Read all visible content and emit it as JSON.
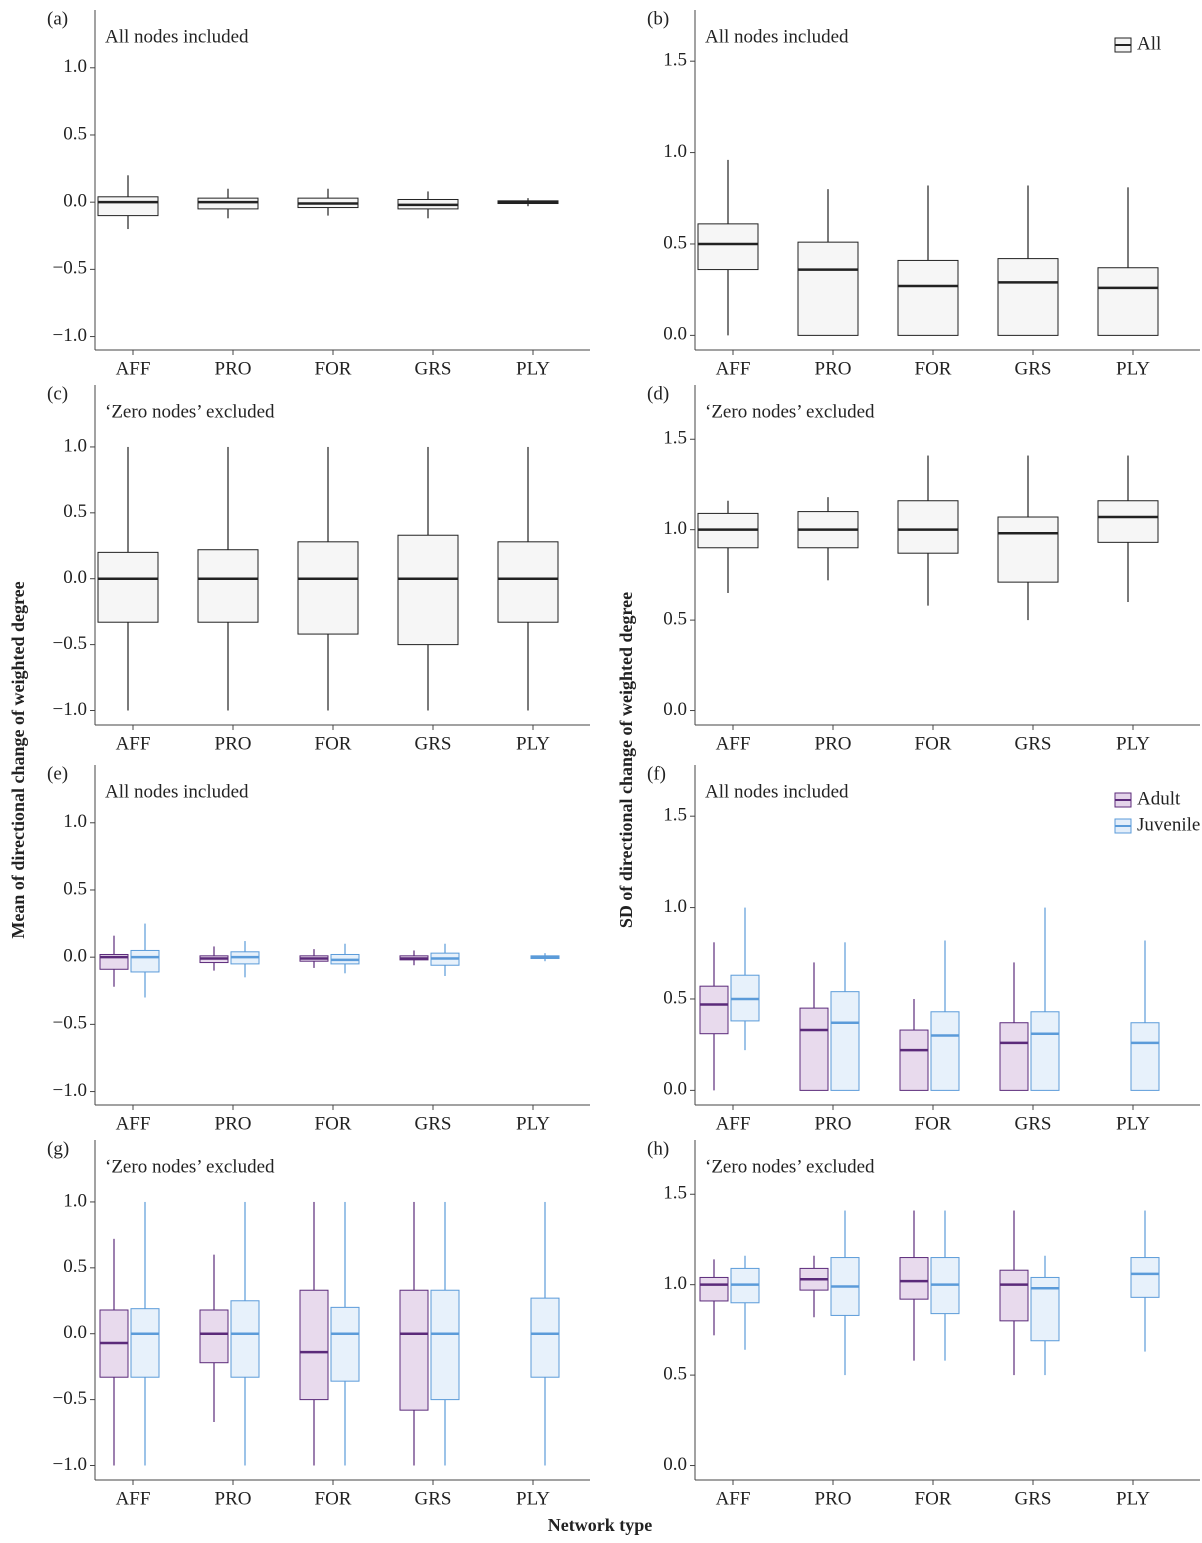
{
  "x_label": "Network type",
  "y_labels": [
    "Mean of directional change of weighted degree",
    "SD of directional change of weighted degree"
  ],
  "chart_data": [
    {
      "type": "box",
      "panel": "(a)",
      "subtitle": "All nodes included",
      "categories": [
        "AFF",
        "PRO",
        "FOR",
        "GRS",
        "PLY"
      ],
      "ylim": [
        -1.1,
        1.43
      ],
      "yticks": [
        {
          "value": -1,
          "label": "−1.0"
        },
        {
          "value": -0.5,
          "label": "−0.5"
        },
        {
          "value": 0,
          "label": "0.0"
        },
        0.5,
        {
          "value": 1,
          "label": "1.0"
        }
      ],
      "series": [
        {
          "color": "#222222",
          "fill": "#f4f4f4",
          "low": [
            -0.2,
            -0.12,
            -0.1,
            -0.12,
            -0.03
          ],
          "q1": [
            -0.1,
            -0.05,
            -0.04,
            -0.05,
            -0.01
          ],
          "median": [
            0,
            0,
            -0.01,
            -0.02,
            0
          ],
          "q3": [
            0.04,
            0.03,
            0.03,
            0.02,
            0.01
          ],
          "high": [
            0.2,
            0.1,
            0.1,
            0.08,
            0.03
          ]
        }
      ]
    },
    {
      "type": "box",
      "panel": "(b)",
      "subtitle": "All nodes included",
      "categories": [
        "AFF",
        "PRO",
        "FOR",
        "GRS",
        "PLY"
      ],
      "ylim": [
        -0.08,
        1.78
      ],
      "yticks": [
        {
          "value": 0,
          "label": "0.0"
        },
        0.5,
        {
          "value": 1,
          "label": "1.0"
        },
        1.5
      ],
      "legend": "top-right",
      "series": [
        {
          "name": "All",
          "color": "#222222",
          "fill": "#f4f4f4",
          "low": [
            0,
            0,
            0,
            0,
            0
          ],
          "q1": [
            0.36,
            0,
            0,
            0,
            0
          ],
          "median": [
            0.5,
            0.36,
            0.27,
            0.29,
            0.26
          ],
          "q3": [
            0.61,
            0.51,
            0.41,
            0.42,
            0.37
          ],
          "high": [
            0.96,
            0.8,
            0.82,
            0.82,
            0.81
          ]
        }
      ]
    },
    {
      "type": "box",
      "panel": "(c)",
      "subtitle": "‘Zero nodes’ excluded",
      "categories": [
        "AFF",
        "PRO",
        "FOR",
        "GRS",
        "PLY"
      ],
      "ylim": [
        -1.11,
        1.47
      ],
      "yticks": [
        {
          "value": -1,
          "label": "−1.0"
        },
        {
          "value": -0.5,
          "label": "−0.5"
        },
        {
          "value": 0,
          "label": "0.0"
        },
        0.5,
        {
          "value": 1,
          "label": "1.0"
        }
      ],
      "series": [
        {
          "color": "#222222",
          "fill": "#f4f4f4",
          "low": [
            -1,
            -1,
            -1,
            -1,
            -1
          ],
          "q1": [
            -0.33,
            -0.33,
            -0.42,
            -0.5,
            -0.33
          ],
          "median": [
            0,
            0,
            0,
            0,
            0
          ],
          "q3": [
            0.2,
            0.22,
            0.28,
            0.33,
            0.28
          ],
          "high": [
            1,
            1,
            1,
            1,
            1
          ]
        }
      ]
    },
    {
      "type": "box",
      "panel": "(d)",
      "subtitle": "‘Zero nodes’ excluded",
      "categories": [
        "AFF",
        "PRO",
        "FOR",
        "GRS",
        "PLY"
      ],
      "ylim": [
        -0.08,
        1.8
      ],
      "yticks": [
        {
          "value": 0,
          "label": "0.0"
        },
        0.5,
        {
          "value": 1,
          "label": "1.0"
        },
        1.5
      ],
      "series": [
        {
          "color": "#222222",
          "fill": "#f4f4f4",
          "low": [
            0.65,
            0.72,
            0.58,
            0.5,
            0.6
          ],
          "q1": [
            0.9,
            0.9,
            0.87,
            0.71,
            0.93
          ],
          "median": [
            1,
            1,
            1,
            0.98,
            1.07
          ],
          "q3": [
            1.09,
            1.1,
            1.16,
            1.07,
            1.16
          ],
          "high": [
            1.16,
            1.18,
            1.41,
            1.41,
            1.41
          ]
        }
      ]
    },
    {
      "type": "box",
      "panel": "(e)",
      "subtitle": "All nodes included",
      "categories": [
        "AFF",
        "PRO",
        "FOR",
        "GRS",
        "PLY"
      ],
      "ylim": [
        -1.1,
        1.43
      ],
      "yticks": [
        {
          "value": -1,
          "label": "−1.0"
        },
        {
          "value": -0.5,
          "label": "−0.5"
        },
        {
          "value": 0,
          "label": "0.0"
        },
        0.5,
        {
          "value": 1,
          "label": "1.0"
        }
      ],
      "series": [
        {
          "color": "#5b2a7a",
          "fill": "#e4d4ea",
          "low": [
            -0.22,
            -0.1,
            -0.08,
            -0.06,
            null
          ],
          "q1": [
            -0.09,
            -0.04,
            -0.03,
            -0.02,
            null
          ],
          "median": [
            0,
            -0.01,
            -0.01,
            -0.01,
            null
          ],
          "q3": [
            0.02,
            0.01,
            0.01,
            0.01,
            null
          ],
          "high": [
            0.16,
            0.08,
            0.06,
            0.05,
            null
          ]
        },
        {
          "color": "#5b9bd9",
          "fill": "#e3eefa",
          "low": [
            -0.3,
            -0.15,
            -0.12,
            -0.14,
            -0.03
          ],
          "q1": [
            -0.11,
            -0.05,
            -0.05,
            -0.06,
            -0.01
          ],
          "median": [
            0,
            0,
            -0.02,
            -0.01,
            0
          ],
          "q3": [
            0.05,
            0.04,
            0.02,
            0.03,
            0.01
          ],
          "high": [
            0.25,
            0.12,
            0.1,
            0.1,
            0.03
          ]
        }
      ]
    },
    {
      "type": "box",
      "panel": "(f)",
      "subtitle": "All nodes included",
      "categories": [
        "AFF",
        "PRO",
        "FOR",
        "GRS",
        "PLY"
      ],
      "ylim": [
        -0.08,
        1.78
      ],
      "yticks": [
        {
          "value": 0,
          "label": "0.0"
        },
        0.5,
        {
          "value": 1,
          "label": "1.0"
        },
        1.5
      ],
      "legend": "top-right",
      "series": [
        {
          "name": "Adult",
          "color": "#5b2a7a",
          "fill": "#e4d4ea",
          "low": [
            0,
            0,
            0,
            0,
            null
          ],
          "q1": [
            0.31,
            0,
            0,
            0,
            null
          ],
          "median": [
            0.47,
            0.33,
            0.22,
            0.26,
            null
          ],
          "q3": [
            0.57,
            0.45,
            0.33,
            0.37,
            null
          ],
          "high": [
            0.81,
            0.7,
            0.5,
            0.7,
            null
          ]
        },
        {
          "name": "Juvenile",
          "color": "#5b9bd9",
          "fill": "#e3eefa",
          "low": [
            0.22,
            0,
            0,
            0,
            0
          ],
          "q1": [
            0.38,
            0,
            0,
            0,
            0
          ],
          "median": [
            0.5,
            0.37,
            0.3,
            0.31,
            0.26
          ],
          "q3": [
            0.63,
            0.54,
            0.43,
            0.43,
            0.37
          ],
          "high": [
            1,
            0.81,
            0.82,
            1,
            0.82
          ]
        }
      ]
    },
    {
      "type": "box",
      "panel": "(g)",
      "subtitle": "‘Zero nodes’ excluded",
      "categories": [
        "AFF",
        "PRO",
        "FOR",
        "GRS",
        "PLY"
      ],
      "ylim": [
        -1.11,
        1.47
      ],
      "yticks": [
        {
          "value": -1,
          "label": "−1.0"
        },
        {
          "value": -0.5,
          "label": "−0.5"
        },
        {
          "value": 0,
          "label": "0.0"
        },
        0.5,
        {
          "value": 1,
          "label": "1.0"
        }
      ],
      "series": [
        {
          "color": "#5b2a7a",
          "fill": "#e4d4ea",
          "low": [
            -1,
            -0.67,
            -1,
            -1,
            null
          ],
          "q1": [
            -0.33,
            -0.22,
            -0.5,
            -0.58,
            null
          ],
          "median": [
            -0.07,
            0,
            -0.14,
            0,
            null
          ],
          "q3": [
            0.18,
            0.18,
            0.33,
            0.33,
            null
          ],
          "high": [
            0.72,
            0.6,
            1,
            1,
            null
          ]
        },
        {
          "color": "#5b9bd9",
          "fill": "#e3eefa",
          "low": [
            -1,
            -1,
            -1,
            -1,
            -1
          ],
          "q1": [
            -0.33,
            -0.33,
            -0.36,
            -0.5,
            -0.33
          ],
          "median": [
            0,
            0,
            0,
            0,
            0
          ],
          "q3": [
            0.19,
            0.25,
            0.2,
            0.33,
            0.27
          ],
          "high": [
            1,
            1,
            1,
            1,
            1
          ]
        }
      ]
    },
    {
      "type": "box",
      "panel": "(h)",
      "subtitle": "‘Zero nodes’ excluded",
      "categories": [
        "AFF",
        "PRO",
        "FOR",
        "GRS",
        "PLY"
      ],
      "ylim": [
        -0.08,
        1.8
      ],
      "yticks": [
        {
          "value": 0,
          "label": "0.0"
        },
        0.5,
        {
          "value": 1,
          "label": "1.0"
        },
        1.5
      ],
      "series": [
        {
          "color": "#5b2a7a",
          "fill": "#e4d4ea",
          "low": [
            0.72,
            0.82,
            0.58,
            0.5,
            null
          ],
          "q1": [
            0.91,
            0.97,
            0.92,
            0.8,
            null
          ],
          "median": [
            1,
            1.03,
            1.02,
            1,
            null
          ],
          "q3": [
            1.04,
            1.09,
            1.15,
            1.08,
            null
          ],
          "high": [
            1.14,
            1.16,
            1.41,
            1.41,
            null
          ]
        },
        {
          "color": "#5b9bd9",
          "fill": "#e3eefa",
          "low": [
            0.64,
            0.5,
            0.58,
            0.5,
            0.63
          ],
          "q1": [
            0.9,
            0.83,
            0.84,
            0.69,
            0.93
          ],
          "median": [
            1,
            0.99,
            1,
            0.98,
            1.06
          ],
          "q3": [
            1.09,
            1.15,
            1.15,
            1.04,
            1.15
          ],
          "high": [
            1.16,
            1.41,
            1.41,
            1.16,
            1.41
          ]
        }
      ]
    }
  ]
}
